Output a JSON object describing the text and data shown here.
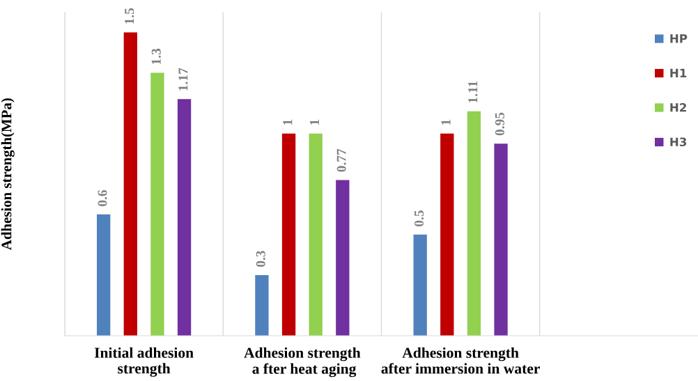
{
  "chart_data": {
    "type": "bar",
    "ylabel": "Adhesion strength(MPa)",
    "categories": [
      "Initial adhesion\nstrength",
      "Adhesion strength\n a fter heat aging",
      "Adhesion strength\nafter immersion in water",
      null
    ],
    "series": [
      {
        "name": "HP",
        "color": "#4f81bd",
        "values": [
          0.6,
          0.3,
          0.5,
          null
        ]
      },
      {
        "name": "H1",
        "color": "#c00000",
        "values": [
          1.5,
          1,
          1,
          null
        ]
      },
      {
        "name": "H2",
        "color": "#92d050",
        "values": [
          1.3,
          1,
          1.11,
          null
        ]
      },
      {
        "name": "H3",
        "color": "#7030a0",
        "values": [
          1.17,
          0.77,
          0.95,
          null
        ]
      }
    ],
    "ylim": [
      0,
      1.6
    ],
    "data_labels": true,
    "grid": "x",
    "legend": "top right",
    "tick_labels": "x"
  }
}
